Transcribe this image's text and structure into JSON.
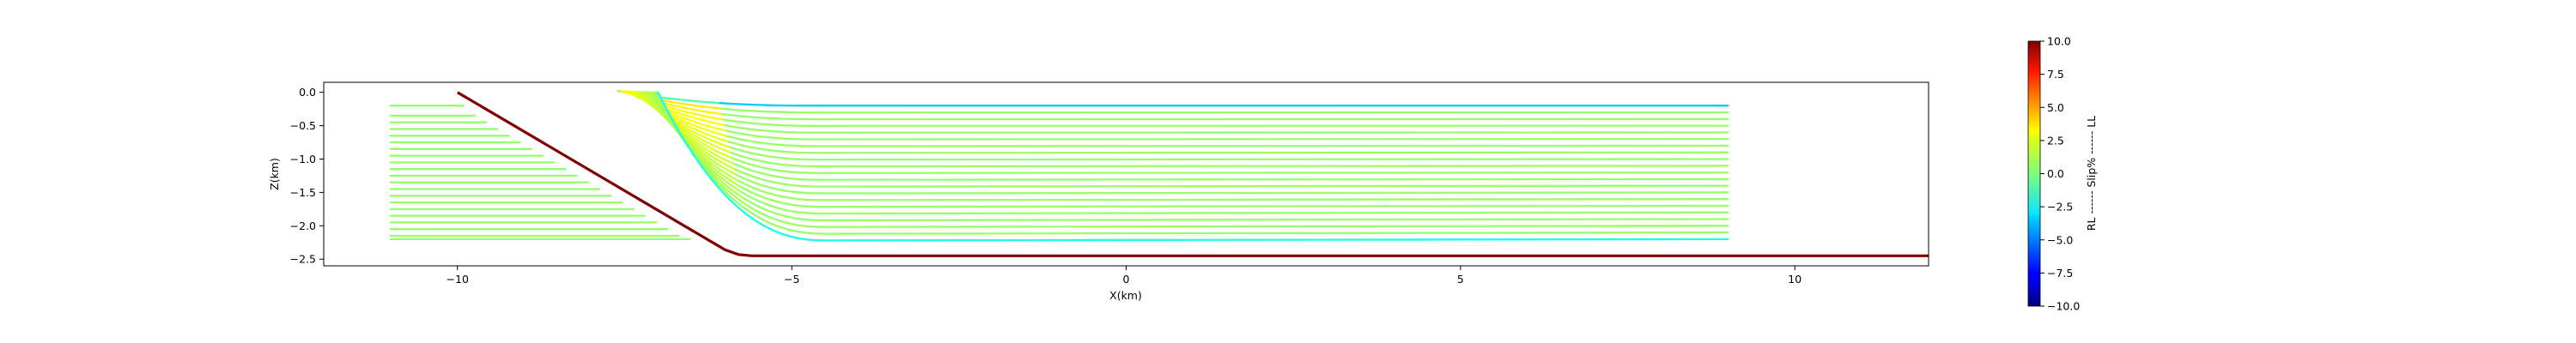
{
  "chart_data": {
    "type": "line",
    "title": "",
    "xlabel": "X(km)",
    "ylabel": "Z(km)",
    "xlim": [
      -12.0,
      12.0
    ],
    "ylim": [
      -2.6,
      0.15
    ],
    "xticks": [
      {
        "value": -10,
        "label": "−10"
      },
      {
        "value": -5,
        "label": "−5"
      },
      {
        "value": 0,
        "label": "0"
      },
      {
        "value": 5,
        "label": "5"
      },
      {
        "value": 10,
        "label": "10"
      }
    ],
    "yticks": [
      {
        "value": 0.0,
        "label": "0.0"
      },
      {
        "value": -0.5,
        "label": "−0.5"
      },
      {
        "value": -1.0,
        "label": "−1.0"
      },
      {
        "value": -1.5,
        "label": "−1.5"
      },
      {
        "value": -2.0,
        "label": "−2.0"
      },
      {
        "value": -2.5,
        "label": "−2.5"
      }
    ],
    "grid": false,
    "fault": {
      "color": "#7f0000",
      "x": [
        -10.0,
        -6.0,
        -5.8,
        -5.6,
        12.0
      ],
      "y": [
        0.0,
        -2.36,
        -2.43,
        -2.45,
        -2.45
      ]
    },
    "layer_lines": {
      "x_start": -11.0,
      "x_end": 9.0,
      "depths": [
        -0.2,
        -0.3,
        -0.4,
        -0.5,
        -0.6,
        -0.7,
        -0.8,
        -0.9,
        -1.0,
        -1.1,
        -1.2,
        -1.3,
        -1.4,
        -1.5,
        -1.6,
        -1.7,
        -1.8,
        -1.9,
        -2.0,
        -2.1,
        -2.2
      ],
      "bend_x": [
        -7.6,
        -7.3,
        -7.0,
        -6.7,
        -6.4,
        -6.1,
        -5.8,
        -5.5,
        -5.2,
        -4.9
      ],
      "top_line_slip": -3.5,
      "bottom_line_slip": -2.0,
      "footwall_slip": 0.4,
      "hanging_wall_slip": 0.5
    },
    "colorbar": {
      "label": "RL ------ Slip% ------ LL",
      "colormap": "jet",
      "vmin": -10.0,
      "vmax": 10.0,
      "ticks": [
        {
          "value": 10.0,
          "label": "10.0"
        },
        {
          "value": 7.5,
          "label": "7.5"
        },
        {
          "value": 5.0,
          "label": "5.0"
        },
        {
          "value": 2.5,
          "label": "2.5"
        },
        {
          "value": 0.0,
          "label": "0.0"
        },
        {
          "value": -2.5,
          "label": "−2.5"
        },
        {
          "value": -5.0,
          "label": "−5.0"
        },
        {
          "value": -7.5,
          "label": "−7.5"
        },
        {
          "value": -10.0,
          "label": "−10.0"
        }
      ]
    }
  }
}
